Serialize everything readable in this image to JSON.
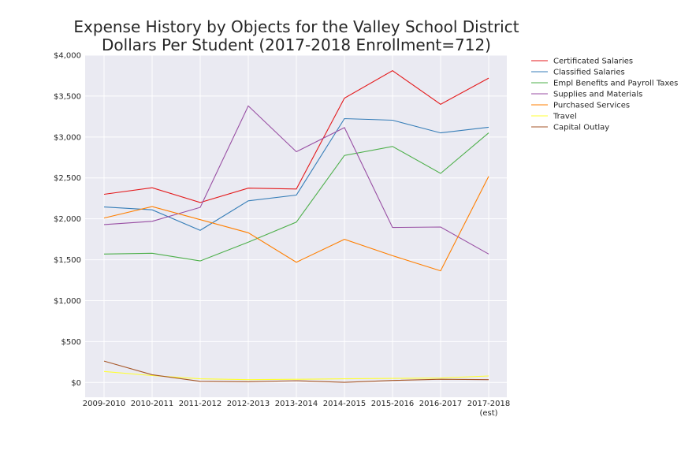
{
  "chart_data": {
    "type": "line",
    "title": [
      "Expense History by Objects for the Valley School District",
      "Dollars Per Student (2017-2018 Enrollment=712)"
    ],
    "categories": [
      "2009-2010",
      "2010-2011",
      "2011-2012",
      "2012-2013",
      "2013-2014",
      "2014-2015",
      "2015-2016",
      "2016-2017",
      "2017-2018\n(est)"
    ],
    "ylim": [
      -180,
      4000
    ],
    "yticks": [
      0,
      500,
      1000,
      1500,
      2000,
      2500,
      3000,
      3500,
      4000
    ],
    "ytick_labels": [
      "$0",
      "$500",
      "$1,000",
      "$1,500",
      "$2,000",
      "$2,500",
      "$3,000",
      "$3,500",
      "$4,000"
    ],
    "grid": true,
    "legend_position": "outside-right",
    "series": [
      {
        "name": "Certificated Salaries",
        "color": "#e41a1c",
        "values": [
          2300,
          2380,
          2200,
          2375,
          2365,
          3475,
          3810,
          3400,
          3720
        ]
      },
      {
        "name": "Classified Salaries",
        "color": "#377eb8",
        "values": [
          2145,
          2110,
          1860,
          2220,
          2290,
          3225,
          3205,
          3050,
          3120
        ]
      },
      {
        "name": "Empl Benefits and Payroll Taxes",
        "color": "#4daf4a",
        "values": [
          1570,
          1580,
          1485,
          1715,
          1960,
          2775,
          2885,
          2555,
          3050
        ]
      },
      {
        "name": "Supplies and Materials",
        "color": "#984ea3",
        "values": [
          1930,
          1970,
          2140,
          3380,
          2820,
          3115,
          1895,
          1900,
          1570
        ]
      },
      {
        "name": "Purchased Services",
        "color": "#ff7f00",
        "values": [
          2010,
          2150,
          1990,
          1830,
          1470,
          1750,
          1550,
          1365,
          2520
        ]
      },
      {
        "name": "Travel",
        "color": "#ffff33",
        "values": [
          135,
          85,
          45,
          35,
          40,
          45,
          50,
          55,
          80
        ]
      },
      {
        "name": "Capital Outlay",
        "color": "#a65628",
        "values": [
          262,
          95,
          15,
          10,
          22,
          2,
          25,
          40,
          35
        ]
      }
    ]
  }
}
